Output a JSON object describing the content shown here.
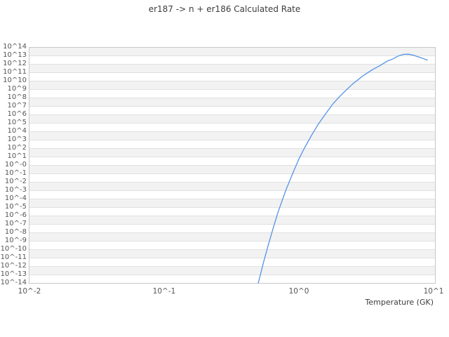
{
  "chart_data": {
    "type": "line",
    "title": "er187 -> n + er186 Calculated Rate",
    "xlabel": "Temperature (GK)",
    "ylabel": "",
    "xscale": "log",
    "yscale": "log",
    "xlim_GK": [
      0.01,
      10
    ],
    "ylim_log10": [
      -14,
      14
    ],
    "grid": "horizontal-decade-bands",
    "legend": "none",
    "x_ticks": [
      {
        "label": "10^-2",
        "log10": -2
      },
      {
        "label": "10^-1",
        "log10": -1
      },
      {
        "label": "10^0",
        "log10": 0
      },
      {
        "label": "10^1",
        "log10": 1
      }
    ],
    "y_tick_labels": [
      "10^14",
      "10^13",
      "10^12",
      "10^11",
      "10^10",
      "10^9",
      "10^8",
      "10^7",
      "10^6",
      "10^5",
      "10^4",
      "10^3",
      "10^2",
      "10^1",
      "10^-0",
      "10^-1",
      "10^-2",
      "10^-3",
      "10^-4",
      "10^-5",
      "10^-6",
      "10^-7",
      "10^-8",
      "10^-9",
      "10^-10",
      "10^-11",
      "10^-12",
      "10^-13",
      "10^-14"
    ],
    "series": [
      {
        "name": "calculated rate",
        "x_GK": [
          0.5,
          0.55,
          0.6,
          0.65,
          0.7,
          0.8,
          0.9,
          1.0,
          1.1,
          1.25,
          1.4,
          1.6,
          1.8,
          2.0,
          2.25,
          2.5,
          3.0,
          3.5,
          4.0,
          4.5,
          5.0,
          5.5,
          6.0,
          6.5,
          7.0,
          7.5,
          8.0,
          8.5,
          9.0
        ],
        "log10_rate": [
          -14.0,
          -11.4,
          -9.2,
          -7.3,
          -5.6,
          -3.0,
          -1.0,
          0.7,
          2.0,
          3.6,
          4.9,
          6.2,
          7.3,
          8.1,
          8.9,
          9.6,
          10.6,
          11.3,
          11.8,
          12.3,
          12.6,
          12.95,
          13.13,
          13.15,
          13.05,
          12.9,
          12.75,
          12.6,
          12.45
        ]
      }
    ],
    "colors": {
      "line": "#5593e8",
      "band": "#f2f2f2",
      "gridline": "#e1e1e1",
      "border": "#c8c8c8",
      "title_text": "#3d3d3d",
      "tick_text": "#555555",
      "background": "#ffffff"
    }
  }
}
